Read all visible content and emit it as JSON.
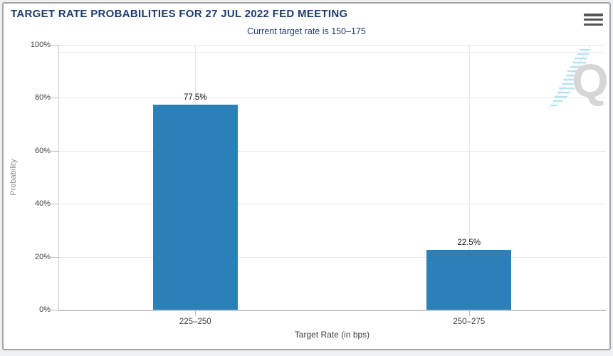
{
  "card": {
    "menu_icon": "hamburger-menu"
  },
  "chart_data": {
    "type": "bar",
    "title": "TARGET RATE PROBABILITIES FOR 27 JUL 2022 FED MEETING",
    "subtitle": "Current target rate is 150–175",
    "categories": [
      "225–250",
      "250–275"
    ],
    "values": [
      77.5,
      22.5
    ],
    "value_labels": [
      "77.5%",
      "22.5%"
    ],
    "xlabel": "Target Rate (in bps)",
    "ylabel": "Probability",
    "ylim": [
      0,
      100
    ],
    "ytick_values": [
      0,
      20,
      40,
      60,
      80,
      100
    ],
    "ytick_labels": [
      "0%",
      "20%",
      "40%",
      "60%",
      "80%",
      "100%"
    ],
    "grid": true,
    "legend": "none",
    "watermark_letter": "Q",
    "colors": {
      "bar": "#2b80b8",
      "title_text": "#1d3c6e",
      "axis_text": "#3d3d3d",
      "gridline": "#e7e7e7",
      "watermark": "#d6d6d6",
      "watermark_accent": "#b8e2f4"
    }
  }
}
